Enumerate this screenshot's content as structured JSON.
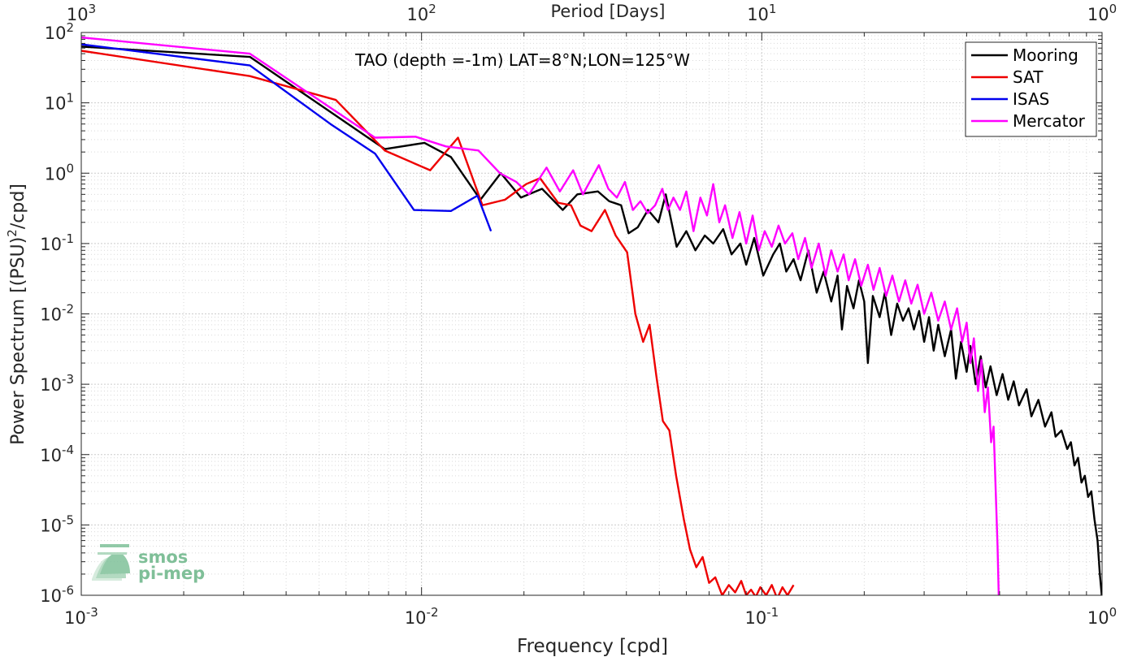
{
  "chart_data": {
    "type": "line",
    "title": "TAO (depth =-1m) LAT=8°N;LON=125°W",
    "xlabel": "Frequency [cpd]",
    "ylabel": "Power Spectrum [(PSU)",
    "ylabel_sup": "2",
    "ylabel_tail": "/cpd]",
    "top_xlabel": "Period [Days]",
    "x_scale": "log",
    "y_scale": "log",
    "xlim": [
      0.001,
      1
    ],
    "ylim": [
      1e-06,
      100
    ],
    "grid": true,
    "legend_position": "top-right",
    "x_tick_labels": [
      {
        "base": "10",
        "exp": "-3",
        "value": 0.001
      },
      {
        "base": "10",
        "exp": "-2",
        "value": 0.01
      },
      {
        "base": "10",
        "exp": "-1",
        "value": 0.1
      },
      {
        "base": "10",
        "exp": "0",
        "value": 1
      }
    ],
    "top_tick_labels": [
      {
        "base": "10",
        "exp": "3",
        "value": 0.001
      },
      {
        "base": "10",
        "exp": "2",
        "value": 0.01
      },
      {
        "base": "10",
        "exp": "1",
        "value": 0.1
      },
      {
        "base": "10",
        "exp": "0",
        "value": 1
      }
    ],
    "y_tick_labels": [
      {
        "base": "10",
        "exp": "2",
        "value": 100
      },
      {
        "base": "10",
        "exp": "1",
        "value": 10
      },
      {
        "base": "10",
        "exp": "0",
        "value": 1
      },
      {
        "base": "10",
        "exp": "-1",
        "value": 0.1
      },
      {
        "base": "10",
        "exp": "-2",
        "value": 0.01
      },
      {
        "base": "10",
        "exp": "-3",
        "value": 0.001
      },
      {
        "base": "10",
        "exp": "-4",
        "value": 0.0001
      },
      {
        "base": "10",
        "exp": "-5",
        "value": 1e-05
      },
      {
        "base": "10",
        "exp": "-6",
        "value": 1e-06
      }
    ],
    "series": [
      {
        "name": "Mooring",
        "color": "#000000",
        "points": [
          [
            0.001,
            63
          ],
          [
            0.00313,
            45
          ],
          [
            0.0078,
            2.2
          ],
          [
            0.0102,
            2.7
          ],
          [
            0.0122,
            1.7
          ],
          [
            0.0149,
            0.42
          ],
          [
            0.0171,
            1.0
          ],
          [
            0.0196,
            0.45
          ],
          [
            0.0226,
            0.6
          ],
          [
            0.026,
            0.3
          ],
          [
            0.0287,
            0.5
          ],
          [
            0.033,
            0.55
          ],
          [
            0.0356,
            0.4
          ],
          [
            0.0386,
            0.35
          ],
          [
            0.0406,
            0.14
          ],
          [
            0.0432,
            0.17
          ],
          [
            0.0463,
            0.3
          ],
          [
            0.0497,
            0.2
          ],
          [
            0.0522,
            0.5
          ],
          [
            0.0562,
            0.09
          ],
          [
            0.06,
            0.15
          ],
          [
            0.0638,
            0.08
          ],
          [
            0.068,
            0.13
          ],
          [
            0.072,
            0.1
          ],
          [
            0.077,
            0.16
          ],
          [
            0.0815,
            0.07
          ],
          [
            0.0865,
            0.1
          ],
          [
            0.09,
            0.05
          ],
          [
            0.095,
            0.12
          ],
          [
            0.101,
            0.035
          ],
          [
            0.108,
            0.07
          ],
          [
            0.113,
            0.1
          ],
          [
            0.118,
            0.04
          ],
          [
            0.124,
            0.06
          ],
          [
            0.13,
            0.03
          ],
          [
            0.137,
            0.08
          ],
          [
            0.145,
            0.02
          ],
          [
            0.152,
            0.04
          ],
          [
            0.16,
            0.015
          ],
          [
            0.167,
            0.035
          ],
          [
            0.172,
            0.006
          ],
          [
            0.178,
            0.025
          ],
          [
            0.186,
            0.012
          ],
          [
            0.193,
            0.03
          ],
          [
            0.2,
            0.015
          ],
          [
            0.205,
            0.002
          ],
          [
            0.212,
            0.018
          ],
          [
            0.222,
            0.009
          ],
          [
            0.23,
            0.02
          ],
          [
            0.24,
            0.005
          ],
          [
            0.25,
            0.014
          ],
          [
            0.26,
            0.008
          ],
          [
            0.27,
            0.012
          ],
          [
            0.28,
            0.006
          ],
          [
            0.29,
            0.011
          ],
          [
            0.3,
            0.004
          ],
          [
            0.31,
            0.009
          ],
          [
            0.32,
            0.003
          ],
          [
            0.33,
            0.007
          ],
          [
            0.345,
            0.0025
          ],
          [
            0.36,
            0.006
          ],
          [
            0.372,
            0.0012
          ],
          [
            0.385,
            0.004
          ],
          [
            0.4,
            0.0015
          ],
          [
            0.41,
            0.0035
          ],
          [
            0.425,
            0.001
          ],
          [
            0.44,
            0.0025
          ],
          [
            0.455,
            0.0009
          ],
          [
            0.47,
            0.0018
          ],
          [
            0.49,
            0.0007
          ],
          [
            0.51,
            0.0014
          ],
          [
            0.53,
            0.0006
          ],
          [
            0.55,
            0.0011
          ],
          [
            0.57,
            0.0005
          ],
          [
            0.6,
            0.00085
          ],
          [
            0.62,
            0.00035
          ],
          [
            0.65,
            0.0006
          ],
          [
            0.68,
            0.00025
          ],
          [
            0.71,
            0.0004
          ],
          [
            0.73,
            0.00018
          ],
          [
            0.76,
            0.00022
          ],
          [
            0.79,
            0.00012
          ],
          [
            0.81,
            0.00015
          ],
          [
            0.83,
            7e-05
          ],
          [
            0.85,
            9e-05
          ],
          [
            0.87,
            4e-05
          ],
          [
            0.89,
            5e-05
          ],
          [
            0.91,
            2.5e-05
          ],
          [
            0.93,
            3e-05
          ],
          [
            0.95,
            1.2e-05
          ],
          [
            0.97,
            6e-06
          ],
          [
            0.985,
            2e-06
          ],
          [
            0.998,
            1e-06
          ]
        ]
      },
      {
        "name": "SAT",
        "color": "#ee0000",
        "points": [
          [
            0.001,
            55
          ],
          [
            0.00313,
            24
          ],
          [
            0.0056,
            11
          ],
          [
            0.0078,
            2.1
          ],
          [
            0.0106,
            1.1
          ],
          [
            0.0128,
            3.2
          ],
          [
            0.0151,
            0.35
          ],
          [
            0.0176,
            0.42
          ],
          [
            0.0203,
            0.7
          ],
          [
            0.0223,
            0.85
          ],
          [
            0.0252,
            0.38
          ],
          [
            0.0275,
            0.35
          ],
          [
            0.0293,
            0.18
          ],
          [
            0.0316,
            0.15
          ],
          [
            0.0346,
            0.3
          ],
          [
            0.0372,
            0.13
          ],
          [
            0.0402,
            0.075
          ],
          [
            0.0425,
            0.01
          ],
          [
            0.0448,
            0.004
          ],
          [
            0.0468,
            0.007
          ],
          [
            0.049,
            0.0013
          ],
          [
            0.0512,
            0.0003
          ],
          [
            0.0535,
            0.00022
          ],
          [
            0.056,
            5e-05
          ],
          [
            0.059,
            1.2e-05
          ],
          [
            0.0615,
            4.5e-06
          ],
          [
            0.0642,
            2.5e-06
          ],
          [
            0.067,
            3.5e-06
          ],
          [
            0.07,
            1.5e-06
          ],
          [
            0.073,
            1.8e-06
          ],
          [
            0.0765,
            1e-06
          ],
          [
            0.08,
            1.4e-06
          ],
          [
            0.0835,
            1.1e-06
          ],
          [
            0.087,
            1.6e-06
          ],
          [
            0.09,
            1e-06
          ],
          [
            0.093,
            1.2e-06
          ],
          [
            0.096,
            9.5e-07
          ],
          [
            0.099,
            1.3e-06
          ],
          [
            0.103,
            1e-06
          ],
          [
            0.107,
            1.4e-06
          ],
          [
            0.111,
            9e-07
          ],
          [
            0.115,
            1.3e-06
          ],
          [
            0.119,
            1e-06
          ],
          [
            0.124,
            1.4e-06
          ]
        ]
      },
      {
        "name": "ISAS",
        "color": "#0000ee",
        "points": [
          [
            0.001,
            68
          ],
          [
            0.00313,
            34
          ],
          [
            0.0054,
            5
          ],
          [
            0.0073,
            1.9
          ],
          [
            0.0095,
            0.3
          ],
          [
            0.0122,
            0.29
          ],
          [
            0.0146,
            0.48
          ],
          [
            0.016,
            0.15
          ]
        ]
      },
      {
        "name": "Mercator",
        "color": "#ff00ff",
        "points": [
          [
            0.001,
            85
          ],
          [
            0.00313,
            50
          ],
          [
            0.0073,
            3.2
          ],
          [
            0.0096,
            3.3
          ],
          [
            0.0118,
            2.4
          ],
          [
            0.0147,
            2.1
          ],
          [
            0.017,
            1.0
          ],
          [
            0.019,
            0.75
          ],
          [
            0.0207,
            0.5
          ],
          [
            0.0233,
            1.2
          ],
          [
            0.0255,
            0.55
          ],
          [
            0.0279,
            1.1
          ],
          [
            0.0298,
            0.5
          ],
          [
            0.0332,
            1.3
          ],
          [
            0.0354,
            0.6
          ],
          [
            0.0375,
            0.45
          ],
          [
            0.0396,
            0.75
          ],
          [
            0.0418,
            0.3
          ],
          [
            0.044,
            0.4
          ],
          [
            0.0462,
            0.27
          ],
          [
            0.0486,
            0.35
          ],
          [
            0.051,
            0.6
          ],
          [
            0.053,
            0.3
          ],
          [
            0.055,
            0.45
          ],
          [
            0.0575,
            0.3
          ],
          [
            0.06,
            0.55
          ],
          [
            0.063,
            0.15
          ],
          [
            0.066,
            0.45
          ],
          [
            0.069,
            0.25
          ],
          [
            0.072,
            0.7
          ],
          [
            0.075,
            0.2
          ],
          [
            0.078,
            0.35
          ],
          [
            0.082,
            0.12
          ],
          [
            0.086,
            0.28
          ],
          [
            0.09,
            0.1
          ],
          [
            0.094,
            0.25
          ],
          [
            0.098,
            0.08
          ],
          [
            0.102,
            0.15
          ],
          [
            0.107,
            0.09
          ],
          [
            0.112,
            0.18
          ],
          [
            0.117,
            0.1
          ],
          [
            0.123,
            0.14
          ],
          [
            0.128,
            0.06
          ],
          [
            0.134,
            0.12
          ],
          [
            0.14,
            0.045
          ],
          [
            0.147,
            0.1
          ],
          [
            0.154,
            0.035
          ],
          [
            0.16,
            0.08
          ],
          [
            0.167,
            0.04
          ],
          [
            0.174,
            0.07
          ],
          [
            0.18,
            0.03
          ],
          [
            0.188,
            0.06
          ],
          [
            0.196,
            0.025
          ],
          [
            0.205,
            0.05
          ],
          [
            0.213,
            0.022
          ],
          [
            0.222,
            0.045
          ],
          [
            0.232,
            0.018
          ],
          [
            0.242,
            0.035
          ],
          [
            0.253,
            0.015
          ],
          [
            0.264,
            0.03
          ],
          [
            0.275,
            0.014
          ],
          [
            0.287,
            0.026
          ],
          [
            0.3,
            0.01
          ],
          [
            0.315,
            0.02
          ],
          [
            0.33,
            0.008
          ],
          [
            0.345,
            0.015
          ],
          [
            0.36,
            0.006
          ],
          [
            0.375,
            0.012
          ],
          [
            0.388,
            0.004
          ],
          [
            0.4,
            0.0075
          ],
          [
            0.41,
            0.002
          ],
          [
            0.42,
            0.0045
          ],
          [
            0.432,
            0.0008
          ],
          [
            0.442,
            0.0022
          ],
          [
            0.452,
            0.0004
          ],
          [
            0.462,
            0.0009
          ],
          [
            0.472,
            0.00015
          ],
          [
            0.48,
            0.00025
          ],
          [
            0.487,
            3e-05
          ],
          [
            0.493,
            5e-06
          ],
          [
            0.497,
            1e-06
          ]
        ]
      }
    ],
    "watermark": {
      "line1": "smos",
      "line2": "pi-mep"
    }
  }
}
